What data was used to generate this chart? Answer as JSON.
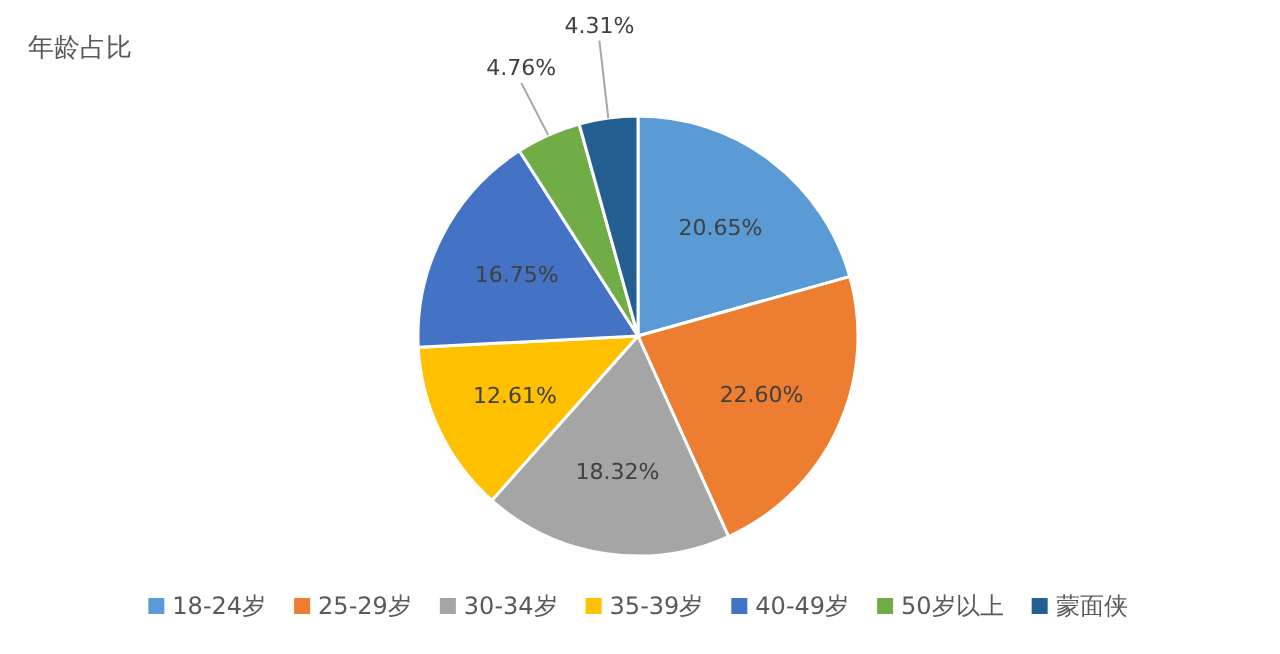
{
  "chart_data": {
    "type": "pie",
    "title": "年龄占比",
    "categories": [
      "18-24岁",
      "25-29岁",
      "30-34岁",
      "35-39岁",
      "40-49岁",
      "50岁以上",
      "蒙面侠"
    ],
    "values": [
      20.65,
      22.6,
      18.32,
      12.61,
      16.75,
      4.76,
      4.31
    ],
    "colors": [
      "#5b9bd5",
      "#ed7d31",
      "#a5a5a5",
      "#ffc000",
      "#4472c4",
      "#70ad47",
      "#255e91"
    ],
    "value_labels": [
      "20.65%",
      "22.60%",
      "18.32%",
      "12.61%",
      "16.75%",
      "4.76%",
      "4.31%"
    ],
    "legend": "bottom"
  }
}
